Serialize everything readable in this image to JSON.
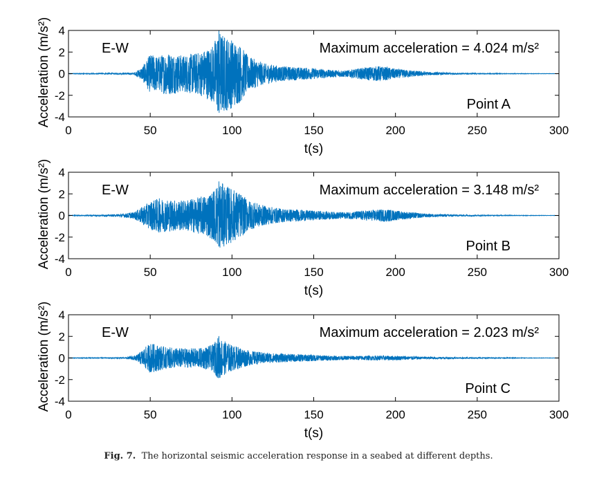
{
  "figure": {
    "caption_label": "Fig. 7.",
    "caption_text": "The horizontal seismic acceleration response in a seabed at different depths."
  },
  "style": {
    "line_color": "#0072BD",
    "axis_color": "#000000"
  },
  "chart_data": [
    {
      "type": "line",
      "title": "",
      "xlabel": "t(s)",
      "ylabel": "Acceleration (m/s²)",
      "xlim": [
        0,
        300
      ],
      "ylim": [
        -4,
        4
      ],
      "xticks": [
        0,
        50,
        100,
        150,
        200,
        250,
        300
      ],
      "yticks": [
        -4,
        -2,
        0,
        2,
        4
      ],
      "component_label": "E-W",
      "max_label": "Maximum acceleration = 4.024 m/s²",
      "max_acceleration": 4.024,
      "point_label": "Point A",
      "envelope": {
        "t": [
          0,
          40,
          45,
          50,
          55,
          60,
          70,
          80,
          88,
          92,
          95,
          100,
          105,
          110,
          120,
          130,
          140,
          150,
          160,
          170,
          180,
          185,
          190,
          195,
          200,
          210,
          220,
          240,
          260,
          280,
          300
        ],
        "amp": [
          0.02,
          0.08,
          0.6,
          1.8,
          1.6,
          2.0,
          1.7,
          2.0,
          2.6,
          4.02,
          3.6,
          3.2,
          2.7,
          1.6,
          0.95,
          0.7,
          0.6,
          0.5,
          0.35,
          0.3,
          0.55,
          0.65,
          0.7,
          0.6,
          0.45,
          0.3,
          0.15,
          0.06,
          0.03,
          0.02,
          0.01
        ]
      }
    },
    {
      "type": "line",
      "title": "",
      "xlabel": "t(s)",
      "ylabel": "Acceleration (m/s²)",
      "xlim": [
        0,
        300
      ],
      "ylim": [
        -4,
        4
      ],
      "xticks": [
        0,
        50,
        100,
        150,
        200,
        250,
        300
      ],
      "yticks": [
        -4,
        -2,
        0,
        2,
        4
      ],
      "component_label": "E-W",
      "max_label": "Maximum acceleration = 3.148 m/s²",
      "max_acceleration": 3.148,
      "point_label": "Point B",
      "envelope": {
        "t": [
          0,
          30,
          40,
          45,
          50,
          55,
          60,
          70,
          80,
          88,
          92,
          95,
          100,
          105,
          110,
          120,
          130,
          140,
          150,
          160,
          170,
          180,
          190,
          195,
          200,
          210,
          220,
          240,
          260,
          280,
          300
        ],
        "amp": [
          0.02,
          0.1,
          0.3,
          0.8,
          1.3,
          1.6,
          1.5,
          1.4,
          1.7,
          2.2,
          3.15,
          2.9,
          2.5,
          2.1,
          1.4,
          0.9,
          0.65,
          0.55,
          0.45,
          0.35,
          0.3,
          0.45,
          0.55,
          0.6,
          0.45,
          0.3,
          0.15,
          0.07,
          0.04,
          0.02,
          0.01
        ]
      }
    },
    {
      "type": "line",
      "title": "",
      "xlabel": "t(s)",
      "ylabel": "Acceleration (m/s²)",
      "xlim": [
        0,
        300
      ],
      "ylim": [
        -4,
        4
      ],
      "xticks": [
        0,
        50,
        100,
        150,
        200,
        250,
        300
      ],
      "yticks": [
        -4,
        -2,
        0,
        2,
        4
      ],
      "component_label": "E-W",
      "max_label": "Maximum acceleration = 2.023 m/s²",
      "max_acceleration": 2.023,
      "point_label": "Point C",
      "envelope": {
        "t": [
          0,
          35,
          42,
          47,
          50,
          55,
          60,
          70,
          80,
          88,
          92,
          95,
          100,
          105,
          110,
          120,
          130,
          140,
          150,
          160,
          170,
          180,
          190,
          200,
          210,
          220,
          240,
          260,
          280,
          300
        ],
        "amp": [
          0.02,
          0.05,
          0.3,
          1.0,
          1.4,
          1.2,
          1.0,
          0.9,
          0.9,
          1.2,
          2.02,
          1.6,
          1.2,
          1.0,
          0.7,
          0.5,
          0.4,
          0.35,
          0.3,
          0.22,
          0.18,
          0.2,
          0.22,
          0.2,
          0.15,
          0.1,
          0.06,
          0.04,
          0.02,
          0.01
        ]
      }
    }
  ]
}
